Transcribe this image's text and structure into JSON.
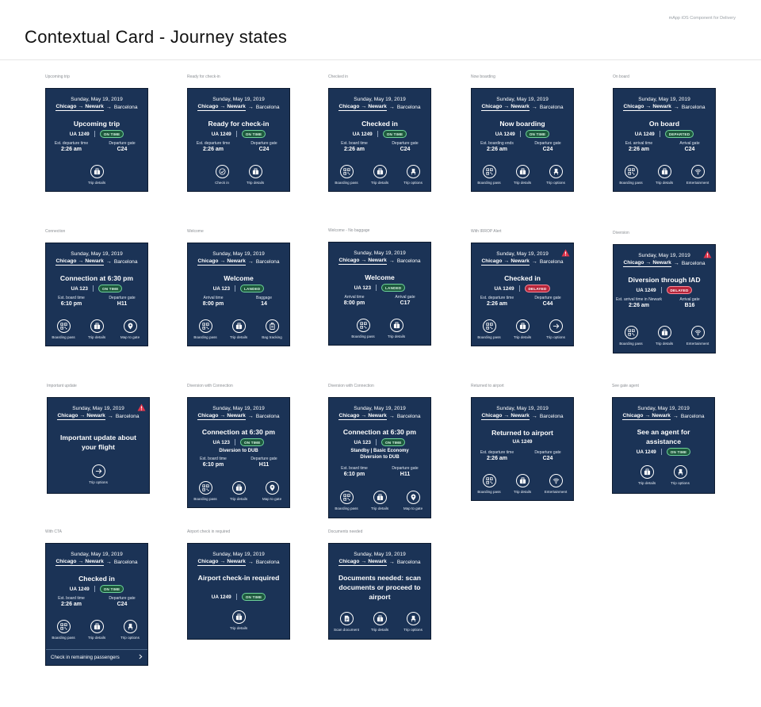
{
  "page": {
    "title": "Contextual Card - Journey states",
    "note": "mApp iOS Component for Delivery"
  },
  "common": {
    "date": "Sunday, May 19, 2019",
    "origin": "Chicago",
    "via": "Newark",
    "destination": "Barcelona"
  },
  "cards": [
    {
      "label": "Upcoming trip",
      "headline": "Upcoming trip",
      "flight": "UA 1249",
      "status": "ON TIME",
      "status_kind": "ok",
      "stats": [
        {
          "label": "Est. departure time",
          "value": "2:26 am"
        },
        {
          "label": "Departure gate",
          "value": "C24"
        }
      ],
      "actions": [
        {
          "icon": "briefcase-icon",
          "label": "Trip details"
        }
      ]
    },
    {
      "label": "Ready for check-in",
      "headline": "Ready for check-in",
      "flight": "UA 1249",
      "status": "ON TIME",
      "status_kind": "ok",
      "stats": [
        {
          "label": "Est. departure time",
          "value": "2:26 am"
        },
        {
          "label": "Departure gate",
          "value": "C24"
        }
      ],
      "actions": [
        {
          "icon": "check-icon",
          "label": "Check in"
        },
        {
          "icon": "briefcase-icon",
          "label": "Trip details"
        }
      ]
    },
    {
      "label": "Checked in",
      "headline": "Checked in",
      "flight": "UA 1249",
      "status": "ON TIME",
      "status_kind": "ok",
      "stats": [
        {
          "label": "Est. board time",
          "value": "2:26 am"
        },
        {
          "label": "Departure gate",
          "value": "C24"
        }
      ],
      "actions": [
        {
          "icon": "qr-code-icon",
          "label": "Boarding pass"
        },
        {
          "icon": "briefcase-icon",
          "label": "Trip details"
        },
        {
          "icon": "seat-icon",
          "label": "Trip options"
        }
      ]
    },
    {
      "label": "Now boarding",
      "headline": "Now boarding",
      "flight": "UA 1249",
      "status": "ON TIME",
      "status_kind": "ok",
      "stats": [
        {
          "label": "Est. boarding ends",
          "value": "2:26 am"
        },
        {
          "label": "Departure gate",
          "value": "C24"
        }
      ],
      "actions": [
        {
          "icon": "qr-code-icon",
          "label": "Boarding pass"
        },
        {
          "icon": "briefcase-icon",
          "label": "Trip details"
        },
        {
          "icon": "seat-icon",
          "label": "Trip options"
        }
      ]
    },
    {
      "label": "On board",
      "headline": "On board",
      "flight": "UA 1249",
      "status": "DEPARTED",
      "status_kind": "ok",
      "stats": [
        {
          "label": "Est. arrival time",
          "value": "2:26 am"
        },
        {
          "label": "Arrival gate",
          "value": "C24"
        }
      ],
      "actions": [
        {
          "icon": "qr-code-icon",
          "label": "Boarding pass"
        },
        {
          "icon": "briefcase-icon",
          "label": "Trip details"
        },
        {
          "icon": "wifi-icon",
          "label": "Entertainment"
        }
      ]
    },
    {
      "label": "Connection",
      "headline": "Connection at 6:30 pm",
      "flight": "UA 123",
      "status": "ON TIME",
      "status_kind": "ok",
      "stats": [
        {
          "label": "Est. board time",
          "value": "6:10 pm"
        },
        {
          "label": "Departure gate",
          "value": "H11"
        }
      ],
      "actions": [
        {
          "icon": "qr-code-icon",
          "label": "Boarding pass"
        },
        {
          "icon": "briefcase-icon",
          "label": "Trip details"
        },
        {
          "icon": "map-pin-icon",
          "label": "Map to gate"
        }
      ]
    },
    {
      "label": "Welcome",
      "headline": "Welcome",
      "flight": "UA 123",
      "status": "LANDED",
      "status_kind": "ok",
      "stats": [
        {
          "label": "Arrival time",
          "value": "8:00 pm"
        },
        {
          "label": "Baggage",
          "value": "14"
        }
      ],
      "actions": [
        {
          "icon": "qr-code-icon",
          "label": "Boarding pass"
        },
        {
          "icon": "briefcase-icon",
          "label": "Trip details"
        },
        {
          "icon": "bag-tag-icon",
          "label": "Bag tracking"
        }
      ]
    },
    {
      "label": "Welcome - No baggage",
      "headline": "Welcome",
      "flight": "UA 123",
      "status": "LANDED",
      "status_kind": "ok",
      "stats": [
        {
          "label": "Arrival time",
          "value": "8:00 pm"
        },
        {
          "label": "Arrival gate",
          "value": "C17"
        }
      ],
      "actions": [
        {
          "icon": "qr-code-icon",
          "label": "Boarding pass"
        },
        {
          "icon": "briefcase-icon",
          "label": "Trip details"
        }
      ]
    },
    {
      "label": "With IRROP Alert",
      "headline": "Checked in",
      "flight": "UA 1249",
      "status": "DELAYED",
      "status_kind": "bad",
      "stats": [
        {
          "label": "Est. departure time",
          "value": "2:26 am"
        },
        {
          "label": "Departure gate",
          "value": "C44"
        }
      ],
      "actions": [
        {
          "icon": "qr-code-icon",
          "label": "Boarding pass"
        },
        {
          "icon": "briefcase-icon",
          "label": "Trip details"
        },
        {
          "icon": "arrow-right-icon",
          "label": "Trip options"
        }
      ]
    },
    {
      "label": "Diversion",
      "headline": "Diversion through IAD",
      "flight": "UA 1249",
      "status": "DELAYED",
      "status_kind": "bad",
      "stats": [
        {
          "label": "Est. arrival time in Newark",
          "value": "2:26 am"
        },
        {
          "label": "Arrival gate",
          "value": "B16"
        }
      ],
      "actions": [
        {
          "icon": "qr-code-icon",
          "label": "Boarding pass"
        },
        {
          "icon": "briefcase-icon",
          "label": "Trip details"
        },
        {
          "icon": "wifi-icon",
          "label": "Entertainment"
        }
      ]
    },
    {
      "label": "Important update",
      "headline": "Important update about your flight",
      "actions": [
        {
          "icon": "arrow-right-icon",
          "label": "Trip options"
        }
      ]
    },
    {
      "label": "Diversion with Connection",
      "headline": "Connection at 6:30 pm",
      "flight": "UA 123",
      "status": "ON TIME",
      "status_kind": "ok",
      "sub": "Diversion to DUB",
      "stats": [
        {
          "label": "Est. board time",
          "value": "6:10 pm"
        },
        {
          "label": "Departure gate",
          "value": "H11"
        }
      ],
      "actions": [
        {
          "icon": "qr-code-icon",
          "label": "Boarding pass"
        },
        {
          "icon": "briefcase-icon",
          "label": "Trip details"
        },
        {
          "icon": "map-pin-icon",
          "label": "Map to gate"
        }
      ]
    },
    {
      "label": "Diversion with Connection",
      "headline": "Connection at 6:30 pm",
      "flight": "UA 123",
      "status": "ON TIME",
      "status_kind": "ok",
      "sub": "Standby | Basic Economy",
      "sub2": "Diversion to DUB",
      "stats": [
        {
          "label": "Est. board time",
          "value": "6:10 pm"
        },
        {
          "label": "Departure gate",
          "value": "H11"
        }
      ],
      "actions": [
        {
          "icon": "qr-code-icon",
          "label": "Boarding pass"
        },
        {
          "icon": "briefcase-icon",
          "label": "Trip details"
        },
        {
          "icon": "map-pin-icon",
          "label": "Map to gate"
        }
      ]
    },
    {
      "label": "Returned to airport",
      "headline": "Returned to airport",
      "flight": "UA 1249",
      "stats": [
        {
          "label": "Est. departure time",
          "value": "2:26 am"
        },
        {
          "label": "Departure gate",
          "value": "C24"
        }
      ],
      "actions": [
        {
          "icon": "qr-code-icon",
          "label": "Boarding pass"
        },
        {
          "icon": "briefcase-icon",
          "label": "Trip details"
        },
        {
          "icon": "wifi-icon",
          "label": "Entertainment"
        }
      ]
    },
    {
      "label": "See gate agent",
      "headline": "See an agent for assistance",
      "flight": "UA 1249",
      "status": "ON TIME",
      "status_kind": "ok",
      "actions": [
        {
          "icon": "briefcase-icon",
          "label": "Trip details"
        },
        {
          "icon": "seat-icon",
          "label": "Trip options"
        }
      ]
    },
    {
      "label": "With CTA",
      "headline": "Checked in",
      "flight": "UA 1249",
      "status": "ON TIME",
      "status_kind": "ok",
      "stats": [
        {
          "label": "Est. board time",
          "value": "2:26 am"
        },
        {
          "label": "Departure gate",
          "value": "C24"
        }
      ],
      "actions": [
        {
          "icon": "qr-code-icon",
          "label": "Boarding pass"
        },
        {
          "icon": "briefcase-icon",
          "label": "Trip details"
        },
        {
          "icon": "seat-icon",
          "label": "Trip options"
        }
      ],
      "cta": "Check in remaining passengers"
    },
    {
      "label": "Airport check in required",
      "headline": "Airport check-in required",
      "flight": "UA 1249",
      "status": "ON TIME",
      "status_kind": "ok",
      "actions": [
        {
          "icon": "briefcase-icon",
          "label": "Trip details"
        }
      ]
    },
    {
      "label": "Documents needed",
      "headline": "Documents needed: scan documents or proceed to airport",
      "actions": [
        {
          "icon": "document-icon",
          "label": "Scan document"
        },
        {
          "icon": "briefcase-icon",
          "label": "Trip details"
        },
        {
          "icon": "seat-icon",
          "label": "Trip options"
        }
      ]
    }
  ]
}
